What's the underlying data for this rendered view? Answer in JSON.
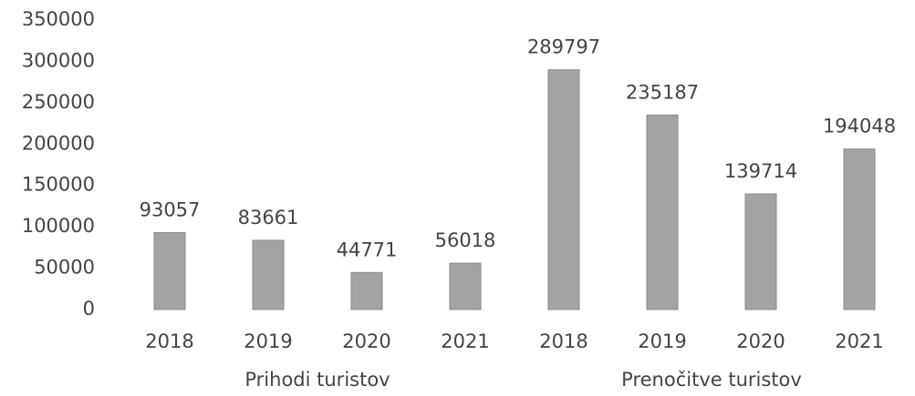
{
  "chart_data": {
    "type": "bar",
    "groups": [
      {
        "name": "Prihodi turistov",
        "categories": [
          "2018",
          "2019",
          "2020",
          "2021"
        ],
        "values": [
          93057,
          83661,
          44771,
          56018
        ]
      },
      {
        "name": "Prenočitve turistov",
        "categories": [
          "2018",
          "2019",
          "2020",
          "2021"
        ],
        "values": [
          289797,
          235187,
          139714,
          194048
        ]
      }
    ],
    "color": "#a3a3a3",
    "ylim": [
      0,
      350000
    ],
    "yticks": [
      0,
      50000,
      100000,
      150000,
      200000,
      250000,
      300000,
      350000
    ],
    "grid": false
  }
}
